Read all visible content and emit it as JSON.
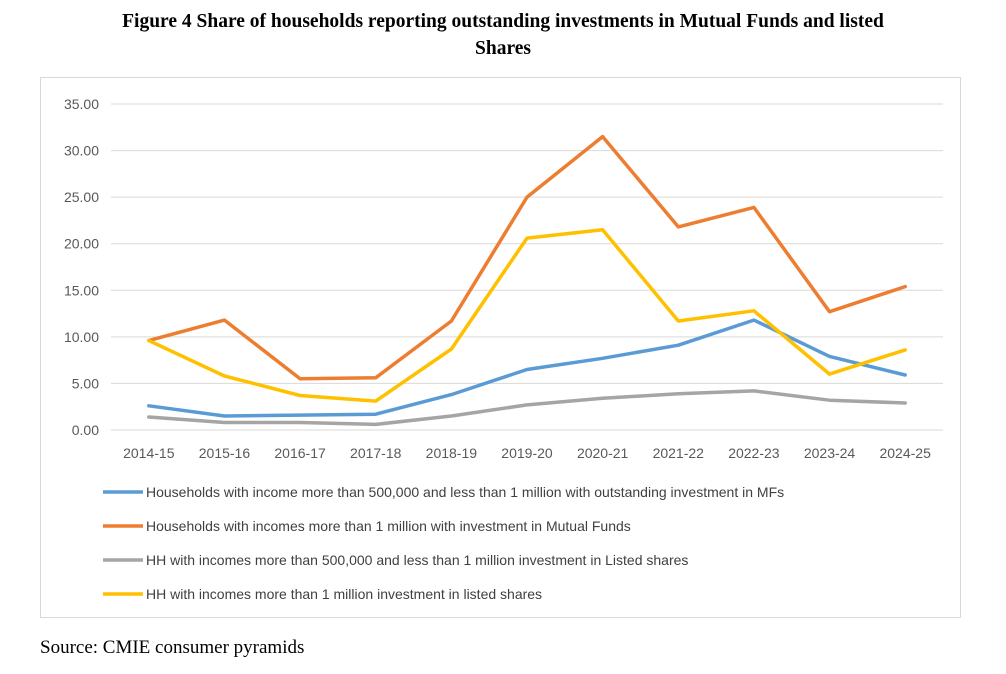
{
  "figure": {
    "title_line1": "Figure 4 Share of households reporting outstanding investments in Mutual Funds and listed",
    "title_line2": "Shares",
    "source": "Source: CMIE consumer pyramids"
  },
  "chart_data": {
    "type": "line",
    "title": "Figure 4 Share of households reporting outstanding investments in Mutual Funds and listed Shares",
    "xlabel": "",
    "ylabel": "",
    "ylim": [
      0,
      35
    ],
    "y_ticks": [
      "0.00",
      "5.00",
      "10.00",
      "15.00",
      "20.00",
      "25.00",
      "30.00",
      "35.00"
    ],
    "grid": true,
    "legend_position": "bottom",
    "categories": [
      "2014-15",
      "2015-16",
      "2016-17",
      "2017-18",
      "2018-19",
      "2019-20",
      "2020-21",
      "2021-22",
      "2022-23",
      "2023-24",
      "2024-25"
    ],
    "series": [
      {
        "name": "Households with income more than 500,000 and less than 1 million with outstanding investment in MFs",
        "color": "#5b9bd5",
        "values": [
          2.6,
          1.5,
          1.6,
          1.7,
          3.8,
          6.5,
          7.7,
          9.1,
          11.8,
          7.9,
          5.9
        ]
      },
      {
        "name": "Households with incomes more than 1 million with investment in Mutual Funds",
        "color": "#ed7d31",
        "values": [
          9.6,
          11.8,
          5.5,
          5.6,
          11.7,
          25.0,
          31.5,
          21.8,
          23.9,
          12.7,
          15.4
        ]
      },
      {
        "name": "HH with incomes more than 500,000 and less than 1 million investment in Listed shares",
        "color": "#a5a5a5",
        "values": [
          1.4,
          0.8,
          0.8,
          0.6,
          1.5,
          2.7,
          3.4,
          3.9,
          4.2,
          3.2,
          2.9
        ]
      },
      {
        "name": "HH with incomes more than 1 million investment in listed shares",
        "color": "#ffc000",
        "values": [
          9.6,
          5.8,
          3.7,
          3.1,
          8.7,
          20.6,
          21.5,
          11.7,
          12.8,
          6.0,
          8.6
        ]
      }
    ]
  }
}
